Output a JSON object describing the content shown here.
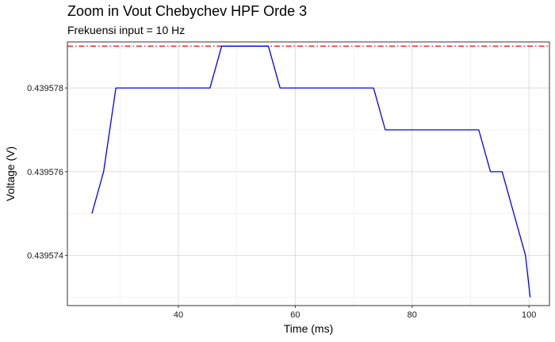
{
  "chart_data": {
    "type": "line",
    "title": "Zoom in Vout Chebychev HPF Orde 3",
    "subtitle": "Frekuensi input = 10 Hz",
    "xlabel": "Time (ms)",
    "ylabel": "Voltage (V)",
    "xlim": [
      21,
      103.5
    ],
    "ylim": [
      0.4395728,
      0.4395791
    ],
    "x_ticks": [
      40,
      60,
      80,
      100
    ],
    "y_ticks": [
      0.439574,
      0.439576,
      0.439578
    ],
    "y_tick_labels": [
      "0.439574",
      "0.439576",
      "0.439578"
    ],
    "grid": true,
    "series": [
      {
        "color": "#0000ee",
        "x": [
          25.2,
          27.2,
          29.3,
          45.4,
          47.4,
          55.4,
          57.4,
          73.4,
          75.4,
          91.4,
          93.4,
          95.4,
          99.4,
          100.2
        ],
        "y": [
          0.439575,
          0.439576,
          0.439578,
          0.439578,
          0.439579,
          0.439579,
          0.439578,
          0.439578,
          0.439577,
          0.439577,
          0.439576,
          0.439576,
          0.439574,
          0.439573
        ]
      }
    ],
    "reference_line": {
      "y": 0.439579,
      "color": "#ff0000",
      "style": "dashdot"
    }
  }
}
